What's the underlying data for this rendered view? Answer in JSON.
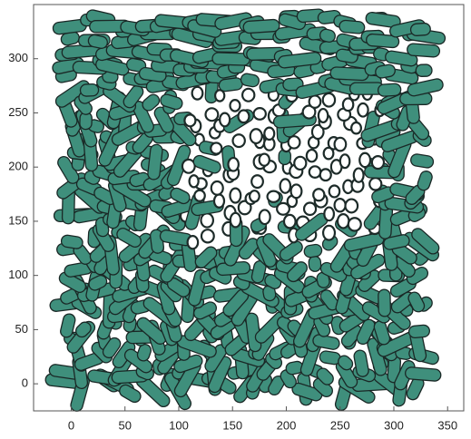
{
  "chart_data": {
    "type": "surface",
    "xlim": [
      -35,
      365
    ],
    "xticks": [
      0,
      50,
      100,
      150,
      200,
      250,
      300,
      350
    ],
    "ylim": [
      -25,
      350
    ],
    "yticks": [
      0,
      50,
      100,
      150,
      200,
      250,
      300
    ],
    "color": "#3f8f7c",
    "box": true
  }
}
